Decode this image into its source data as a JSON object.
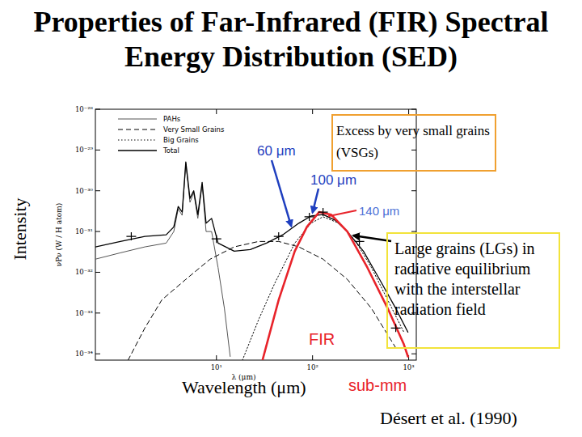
{
  "chart_data": {
    "type": "line",
    "title": "Properties of Far-Infrared (FIR) Spectral Energy Distribution (SED)",
    "x_label": "λ (μm)",
    "y_label": "νPν (W / H atom)",
    "log": true,
    "grid": false,
    "legend": "upper left",
    "xlim": [
      0.55,
      1200
    ],
    "ylim": [
      7e-35,
      1e-28
    ],
    "xticks": [
      {
        "value": 10,
        "label": "10¹"
      },
      {
        "value": 100,
        "label": "10²"
      },
      {
        "value": 1000,
        "label": "10³"
      }
    ],
    "yticks": [
      {
        "value": 1e-34,
        "label": "10⁻³⁴"
      },
      {
        "value": 1e-33,
        "label": "10⁻³³"
      },
      {
        "value": 1e-32,
        "label": "10⁻³²"
      },
      {
        "value": 1e-31,
        "label": "10⁻³¹"
      },
      {
        "value": 1e-30,
        "label": "10⁻³⁰"
      },
      {
        "value": 1e-29,
        "label": "10⁻²⁹"
      },
      {
        "value": 1e-28,
        "label": "10⁻²⁸"
      }
    ],
    "series": [
      {
        "name": "PAHs",
        "color": "#555555",
        "line_style": "solid",
        "x": [
          0.55,
          1.0,
          1.8,
          3.0,
          3.6,
          4.0,
          4.4,
          4.8,
          5.3,
          5.8,
          6.4,
          7.1,
          7.8,
          8.9,
          10.4,
          12.1,
          13.9
        ],
        "values": [
          2.1e-32,
          3e-32,
          4.2e-32,
          5.2e-32,
          1e-31,
          3.6e-31,
          2.5e-31,
          4.7e-30,
          5.2e-31,
          9e-31,
          2.1e-31,
          1.4e-30,
          1e-31,
          1e-31,
          1.3e-32,
          1.3e-33,
          8.6e-35
        ]
      },
      {
        "name": "Very Small Grains",
        "color": "#000000",
        "line_style": "dashed",
        "x": [
          1.2,
          1.8,
          2.7,
          4.8,
          8.6,
          15.3,
          27.4,
          44.4,
          71.9,
          128.5,
          230,
          410,
          734
        ],
        "values": [
          6.9e-35,
          4.3e-34,
          2.1e-33,
          6.7e-33,
          2.1e-32,
          4.2e-32,
          5.7e-32,
          5.7e-32,
          4.2e-32,
          2.1e-32,
          6.7e-33,
          1.3e-33,
          1.4e-34
        ]
      },
      {
        "name": "Big Grains",
        "color": "#000000",
        "line_style": "dotted",
        "x": [
          18.6,
          27.4,
          40.3,
          65.3,
          96.2,
          128.5,
          189,
          279,
          410,
          605,
          891
        ],
        "values": [
          6.9e-35,
          6.8e-34,
          5.3e-33,
          5.2e-32,
          1.6e-31,
          2.3e-31,
          1.6e-31,
          5.9e-32,
          1.3e-32,
          2.1e-33,
          3.4e-34
        ]
      },
      {
        "name": "Total",
        "color": "#000000",
        "line_style": "solid",
        "x": [
          0.55,
          1.0,
          1.8,
          3.0,
          3.6,
          4.0,
          4.4,
          4.8,
          5.3,
          5.8,
          6.4,
          7.1,
          7.8,
          8.9,
          10.4,
          15.3,
          22.5,
          33.2,
          48.9,
          71.9,
          96.2,
          128.5,
          172,
          230,
          338,
          498,
          734,
          982
        ],
        "values": [
          4.2e-32,
          5.7e-32,
          7.6e-32,
          8.3e-32,
          1.3e-31,
          4.1e-31,
          3e-31,
          5.1e-30,
          6.5e-31,
          1e-30,
          2.6e-31,
          1.6e-30,
          1.6e-31,
          2.1e-31,
          5.2e-32,
          3.3e-32,
          3.6e-32,
          5.2e-32,
          8.3e-32,
          1.6e-31,
          2.4e-31,
          2.6e-31,
          1.9e-31,
          1e-31,
          3.3e-32,
          6.7e-33,
          1.3e-33,
          3.4e-34
        ]
      },
      {
        "color": "#e8232a",
        "line_style": "solid",
        "x": [
          30.1,
          44.4,
          65.3,
          87.3,
          117,
          156,
          230,
          372,
          605,
          891,
          982
        ],
        "values": [
          6.9e-35,
          2.1e-33,
          3.3e-32,
          1.3e-31,
          3e-31,
          2.6e-31,
          1e-31,
          1.3e-32,
          1.3e-33,
          1.7e-34,
          8.6e-35
        ]
      },
      {
        "type": "scatter",
        "marker": "cross",
        "color": "#000000",
        "x": [
          1.3,
          10,
          44.4,
          92.5,
          128.5,
          307,
          734
        ],
        "values": [
          7.6e-32,
          6.6e-32,
          7.6e-32,
          2.3e-31,
          3e-31,
          5.7e-32,
          4.3e-34
        ]
      }
    ],
    "annotations": [
      {
        "text": "60 μm",
        "x": 60
      },
      {
        "text": "100 μm",
        "x": 100
      },
      {
        "text": "140 μm",
        "x": 140
      },
      {
        "text": "Excess by very small grains (VSGs)"
      },
      {
        "text": "Large grains (LGs) in radiative equilibrium with the interstellar radiation field"
      },
      {
        "text": "FIR"
      },
      {
        "text": "sub-mm"
      },
      {
        "text": "Intensity"
      },
      {
        "text": "Wavelength (μm)"
      },
      {
        "text": "Désert et al. (1990)"
      }
    ]
  }
}
